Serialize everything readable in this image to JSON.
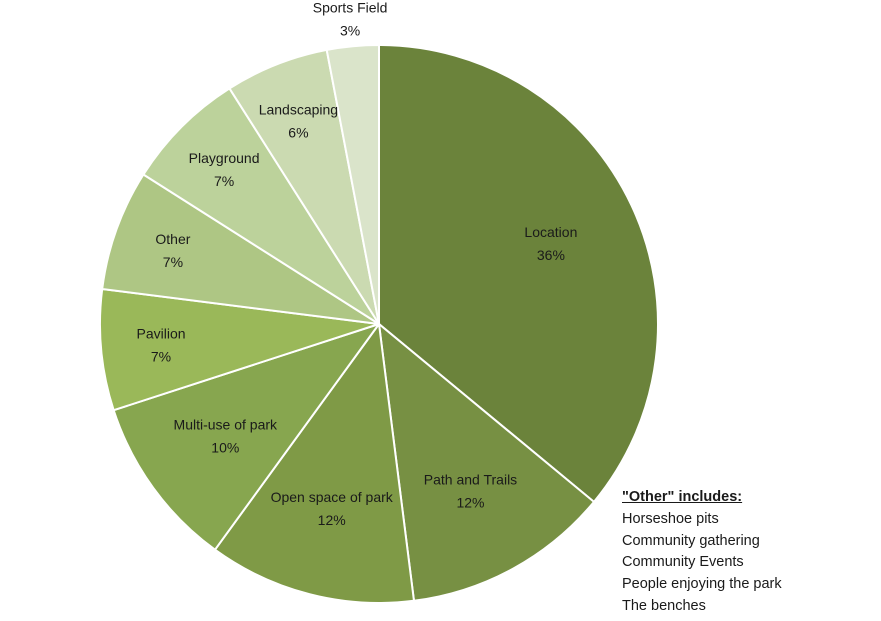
{
  "chart_data": {
    "type": "pie",
    "title": "",
    "start_angle_deg": 0,
    "direction": "clockwise",
    "slices": [
      {
        "label": "Location",
        "value": 36,
        "value_label": "36%",
        "color": "#6b833b"
      },
      {
        "label": "Path and Trails",
        "value": 12,
        "value_label": "12%",
        "color": "#779043"
      },
      {
        "label": "Open space of park",
        "value": 12,
        "value_label": "12%",
        "color": "#7f9a46"
      },
      {
        "label": "Multi-use of park",
        "value": 10,
        "value_label": "10%",
        "color": "#87a64f"
      },
      {
        "label": "Pavilion",
        "value": 7,
        "value_label": "7%",
        "color": "#9ab859"
      },
      {
        "label": "Other",
        "value": 7,
        "value_label": "7%",
        "color": "#aec684"
      },
      {
        "label": "Playground",
        "value": 7,
        "value_label": "7%",
        "color": "#bcd29b"
      },
      {
        "label": "Landscaping",
        "value": 6,
        "value_label": "6%",
        "color": "#cbdab1"
      },
      {
        "label": "Sports Field",
        "value": 3,
        "value_label": "3%",
        "color": "#dae4ca"
      }
    ]
  },
  "other_note": {
    "title": "\"Other\" includes:",
    "items": [
      "Horseshoe pits",
      "Community gathering",
      "Community Events",
      "People enjoying the park",
      "The benches"
    ]
  }
}
